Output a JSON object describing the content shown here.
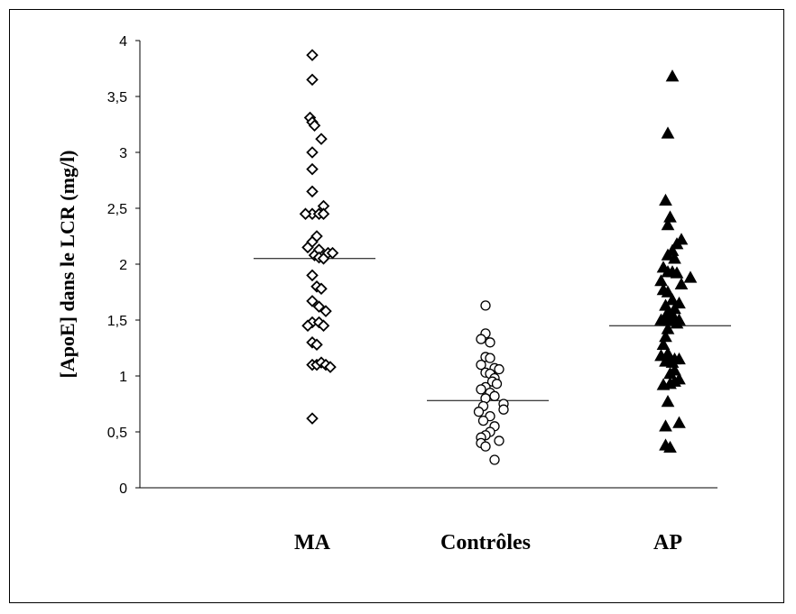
{
  "chart_data": {
    "type": "scatter",
    "title": "",
    "xlabel": "",
    "ylabel": "[ApoE] dans le LCR (mg/l)",
    "ylim": [
      0,
      4
    ],
    "yticks": [
      "0",
      "0,5",
      "1",
      "1,5",
      "2",
      "2,5",
      "3",
      "3,5",
      "4"
    ],
    "ytick_values": [
      0,
      0.5,
      1,
      1.5,
      2,
      2.5,
      3,
      3.5,
      4
    ],
    "categories": [
      "MA",
      "Contrôles",
      "AP"
    ],
    "grid": false,
    "series": [
      {
        "category": "MA",
        "marker": "diamond-open",
        "median": 2.05,
        "points": [
          [
            0,
            3.87
          ],
          [
            0,
            3.65
          ],
          [
            -0.01,
            3.31
          ],
          [
            0,
            3.27
          ],
          [
            0.01,
            3.24
          ],
          [
            0.04,
            3.12
          ],
          [
            0,
            3.0
          ],
          [
            0,
            2.85
          ],
          [
            0,
            2.65
          ],
          [
            0.05,
            2.52
          ],
          [
            0,
            2.45
          ],
          [
            0.03,
            2.45
          ],
          [
            -0.03,
            2.45
          ],
          [
            0.05,
            2.45
          ],
          [
            0.02,
            2.25
          ],
          [
            0,
            2.2
          ],
          [
            -0.02,
            2.15
          ],
          [
            0.03,
            2.13
          ],
          [
            0.07,
            2.1
          ],
          [
            0.09,
            2.1
          ],
          [
            0.01,
            2.08
          ],
          [
            0.03,
            2.06
          ],
          [
            0.05,
            2.05
          ],
          [
            0,
            1.9
          ],
          [
            0.02,
            1.8
          ],
          [
            0.04,
            1.78
          ],
          [
            0,
            1.67
          ],
          [
            0.03,
            1.62
          ],
          [
            0.06,
            1.58
          ],
          [
            0,
            1.48
          ],
          [
            0.03,
            1.48
          ],
          [
            0.05,
            1.45
          ],
          [
            -0.02,
            1.45
          ],
          [
            0,
            1.3
          ],
          [
            0.02,
            1.28
          ],
          [
            0,
            1.1
          ],
          [
            0.02,
            1.1
          ],
          [
            0.04,
            1.12
          ],
          [
            0.06,
            1.1
          ],
          [
            0.08,
            1.08
          ],
          [
            0,
            0.62
          ]
        ]
      },
      {
        "category": "Contrôles",
        "marker": "circle-open",
        "median": 0.78,
        "points": [
          [
            0,
            1.63
          ],
          [
            0,
            1.38
          ],
          [
            -0.02,
            1.33
          ],
          [
            0.02,
            1.3
          ],
          [
            0,
            1.17
          ],
          [
            0.02,
            1.16
          ],
          [
            -0.02,
            1.1
          ],
          [
            0.04,
            1.07
          ],
          [
            0.06,
            1.06
          ],
          [
            0,
            1.03
          ],
          [
            0.02,
            1.02
          ],
          [
            0.04,
            0.98
          ],
          [
            0.03,
            0.95
          ],
          [
            0.05,
            0.93
          ],
          [
            0,
            0.9
          ],
          [
            -0.02,
            0.88
          ],
          [
            0.02,
            0.85
          ],
          [
            0.04,
            0.82
          ],
          [
            0,
            0.8
          ],
          [
            0.08,
            0.75
          ],
          [
            -0.01,
            0.73
          ],
          [
            0.08,
            0.7
          ],
          [
            -0.03,
            0.68
          ],
          [
            0.02,
            0.64
          ],
          [
            -0.01,
            0.6
          ],
          [
            0.04,
            0.55
          ],
          [
            0.02,
            0.5
          ],
          [
            0,
            0.47
          ],
          [
            -0.02,
            0.45
          ],
          [
            0.06,
            0.42
          ],
          [
            -0.02,
            0.4
          ],
          [
            0,
            0.37
          ],
          [
            0.04,
            0.25
          ]
        ]
      },
      {
        "category": "AP",
        "marker": "triangle-filled",
        "median": 1.45,
        "points": [
          [
            0.02,
            3.68
          ],
          [
            0,
            3.17
          ],
          [
            -0.01,
            2.57
          ],
          [
            0.01,
            2.42
          ],
          [
            0,
            2.35
          ],
          [
            0.06,
            2.22
          ],
          [
            0.04,
            2.18
          ],
          [
            0.02,
            2.12
          ],
          [
            0,
            2.08
          ],
          [
            0.03,
            2.05
          ],
          [
            -0.02,
            1.97
          ],
          [
            0,
            1.93
          ],
          [
            0.02,
            1.93
          ],
          [
            0.04,
            1.92
          ],
          [
            0.1,
            1.88
          ],
          [
            -0.03,
            1.85
          ],
          [
            0.06,
            1.82
          ],
          [
            -0.02,
            1.77
          ],
          [
            0,
            1.75
          ],
          [
            0.02,
            1.68
          ],
          [
            0.05,
            1.65
          ],
          [
            -0.01,
            1.63
          ],
          [
            0.03,
            1.6
          ],
          [
            0,
            1.57
          ],
          [
            0.02,
            1.55
          ],
          [
            -0.03,
            1.5
          ],
          [
            -0.01,
            1.5
          ],
          [
            0.01,
            1.5
          ],
          [
            0.03,
            1.5
          ],
          [
            0.05,
            1.5
          ],
          [
            0.04,
            1.47
          ],
          [
            0,
            1.42
          ],
          [
            -0.01,
            1.35
          ],
          [
            -0.02,
            1.28
          ],
          [
            0,
            1.2
          ],
          [
            -0.03,
            1.18
          ],
          [
            0.01,
            1.16
          ],
          [
            0.03,
            1.15
          ],
          [
            0.05,
            1.15
          ],
          [
            -0.01,
            1.13
          ],
          [
            0.02,
            1.12
          ],
          [
            0.03,
            1.05
          ],
          [
            0.01,
            1.02
          ],
          [
            0.05,
            0.97
          ],
          [
            0.03,
            0.95
          ],
          [
            0.01,
            0.93
          ],
          [
            -0.02,
            0.92
          ],
          [
            0,
            0.77
          ],
          [
            -0.01,
            0.55
          ],
          [
            0.05,
            0.58
          ],
          [
            -0.01,
            0.38
          ],
          [
            0.01,
            0.36
          ]
        ]
      }
    ]
  }
}
